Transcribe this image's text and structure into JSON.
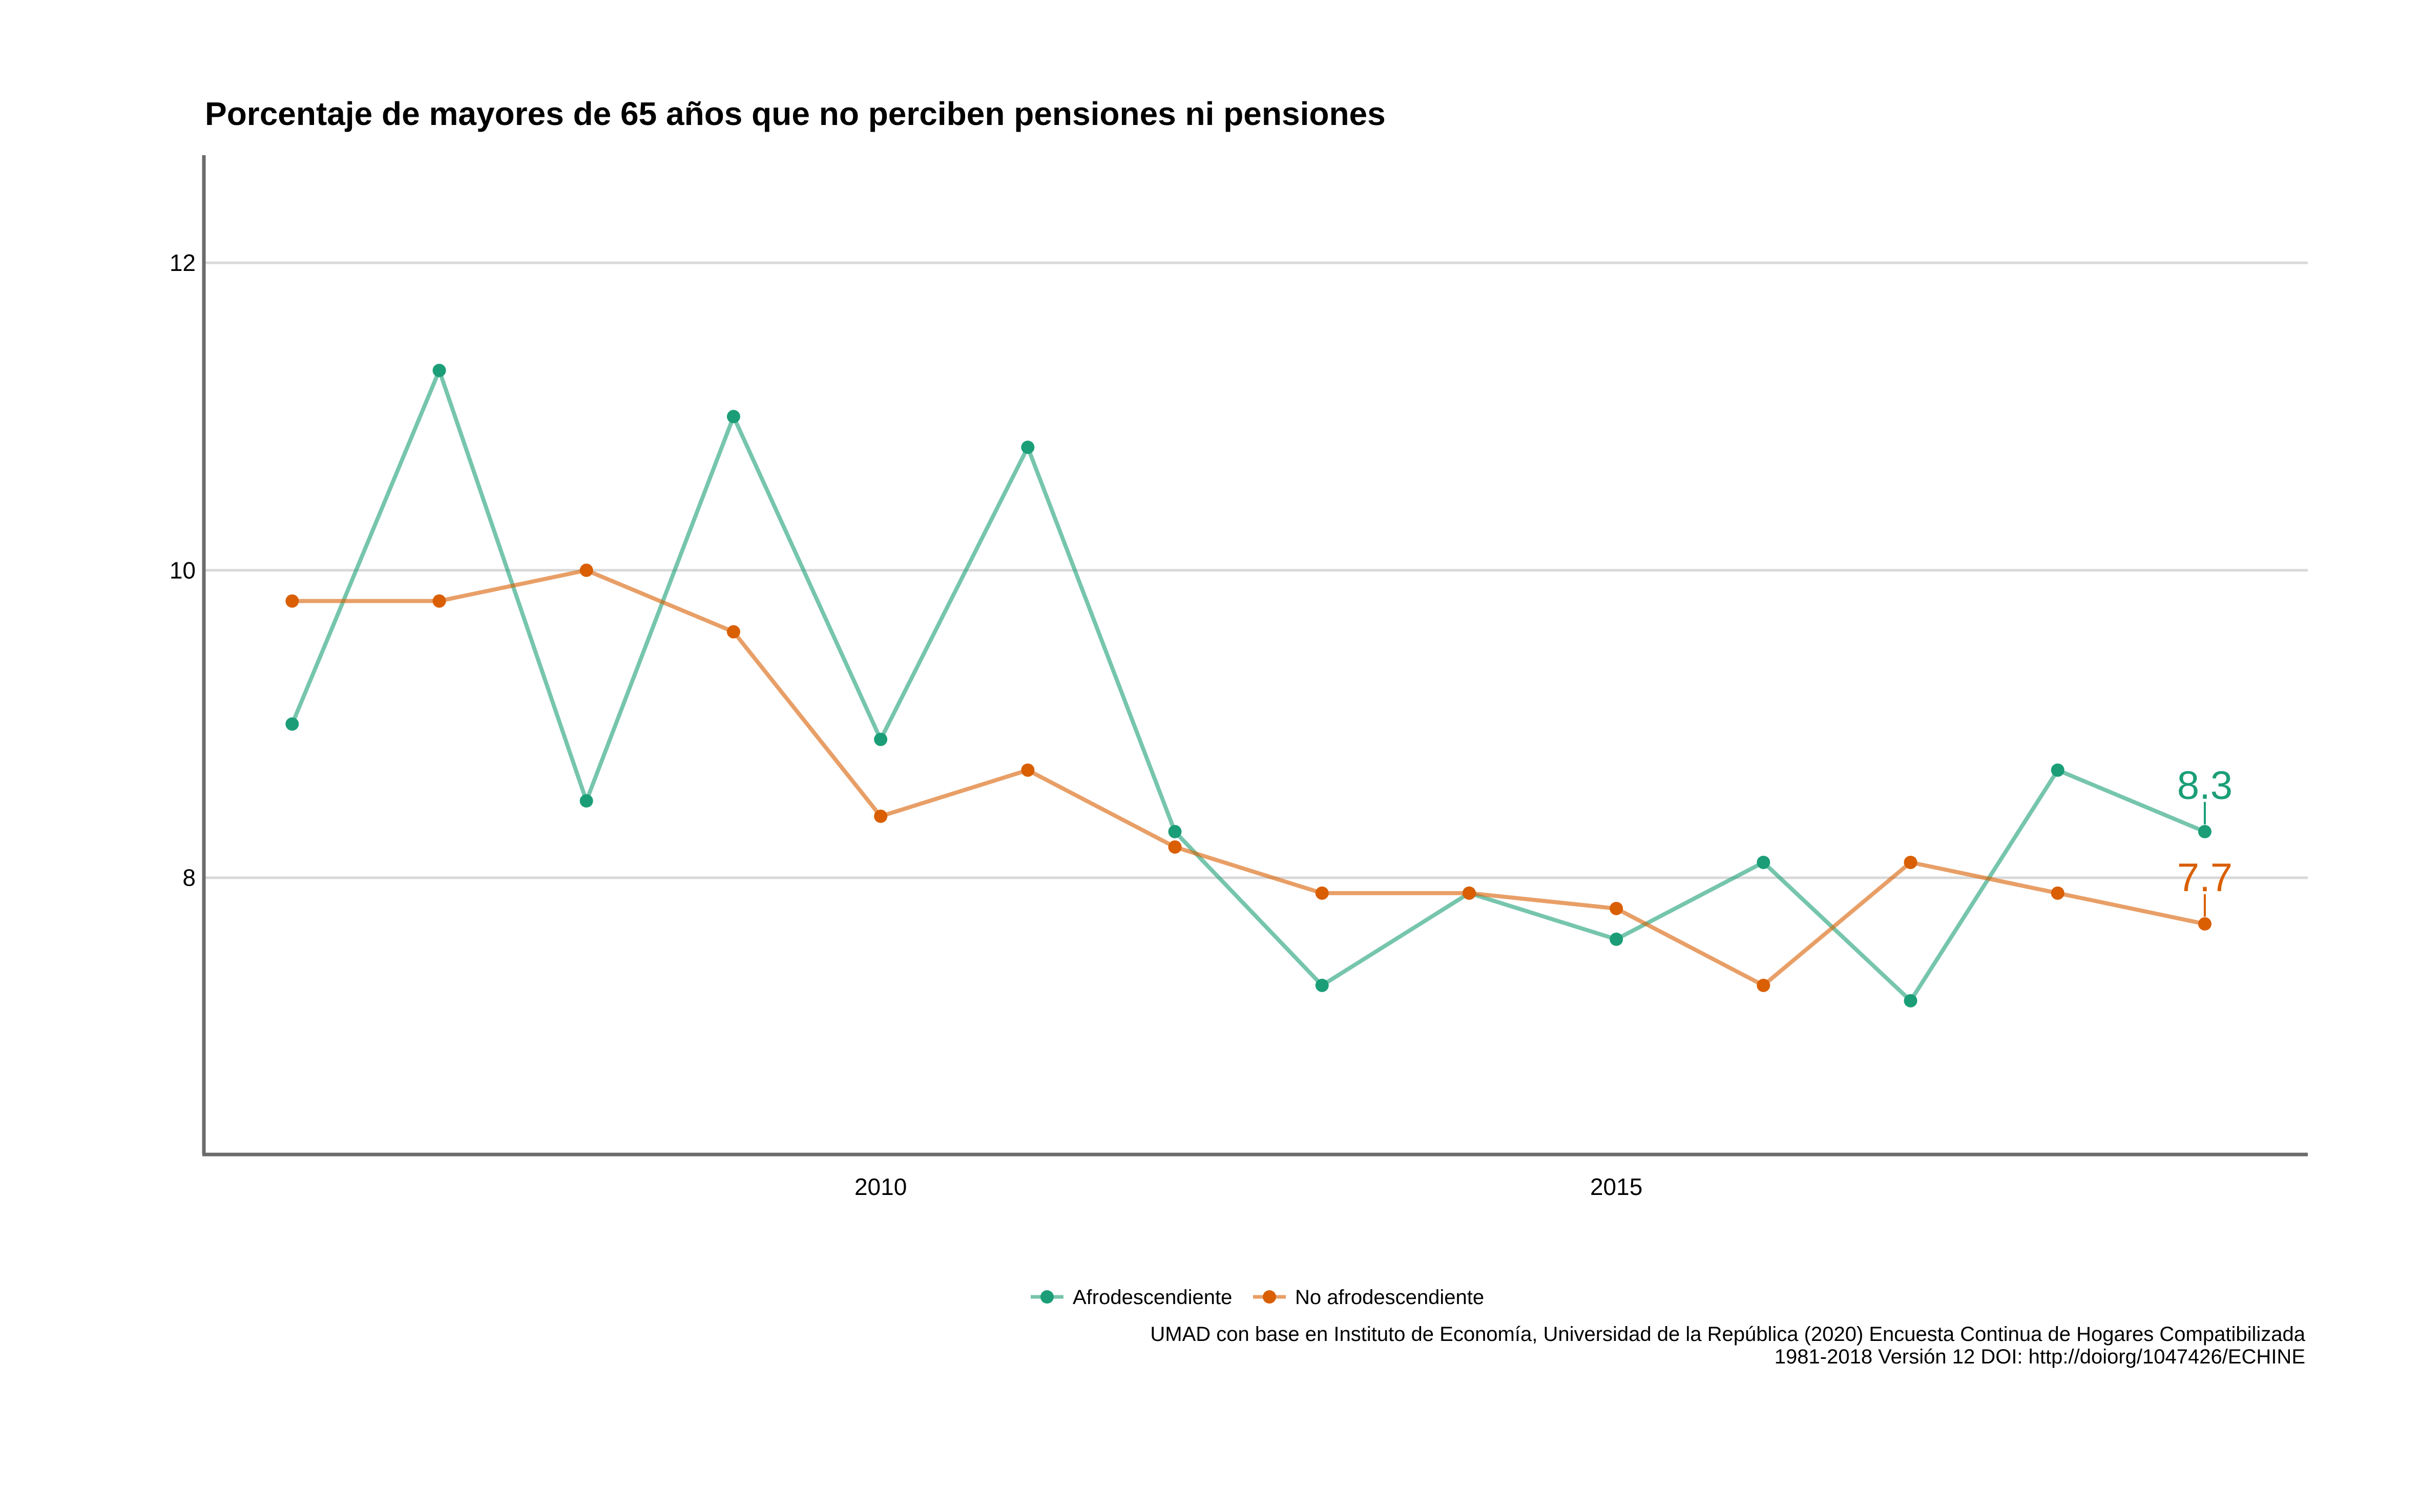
{
  "chart_data": {
    "type": "line",
    "title": "Porcentaje de mayores de 65 años que no perciben pensiones ni pensiones",
    "xlabel": "",
    "ylabel": "",
    "x": [
      2006,
      2007,
      2008,
      2009,
      2010,
      2011,
      2012,
      2013,
      2014,
      2015,
      2016,
      2017,
      2018,
      2019
    ],
    "xlim": [
      2005.4,
      2019.7
    ],
    "ylim": [
      6.2,
      12.7
    ],
    "x_ticks": [
      2010,
      2015
    ],
    "x_tick_labels": [
      "2010",
      "2015"
    ],
    "y_ticks": [
      8,
      10,
      12
    ],
    "y_tick_labels": [
      "8",
      "10",
      "12"
    ],
    "grid": "horizontal",
    "legend_position": "bottom",
    "series": [
      {
        "name": "Afrodescendiente",
        "color": "#1b9e77",
        "values": [
          9.0,
          11.3,
          8.5,
          11.0,
          8.9,
          10.8,
          8.3,
          7.3,
          7.9,
          7.6,
          8.1,
          7.2,
          8.7,
          8.3
        ],
        "end_label": "8.3"
      },
      {
        "name": "No afrodescendiente",
        "color": "#d95f02",
        "values": [
          9.8,
          9.8,
          10.0,
          9.6,
          8.4,
          8.7,
          8.2,
          7.9,
          7.9,
          7.8,
          7.3,
          8.1,
          7.9,
          7.7
        ],
        "end_label": "7.7"
      }
    ],
    "caption_lines": [
      "UMAD con base en Instituto de Economía, Universidad de la República (2020) Encuesta Continua de Hogares Compatibilizada",
      "1981-2018 Versión 12 DOI: http://doiorg/1047426/ECHINE"
    ]
  }
}
